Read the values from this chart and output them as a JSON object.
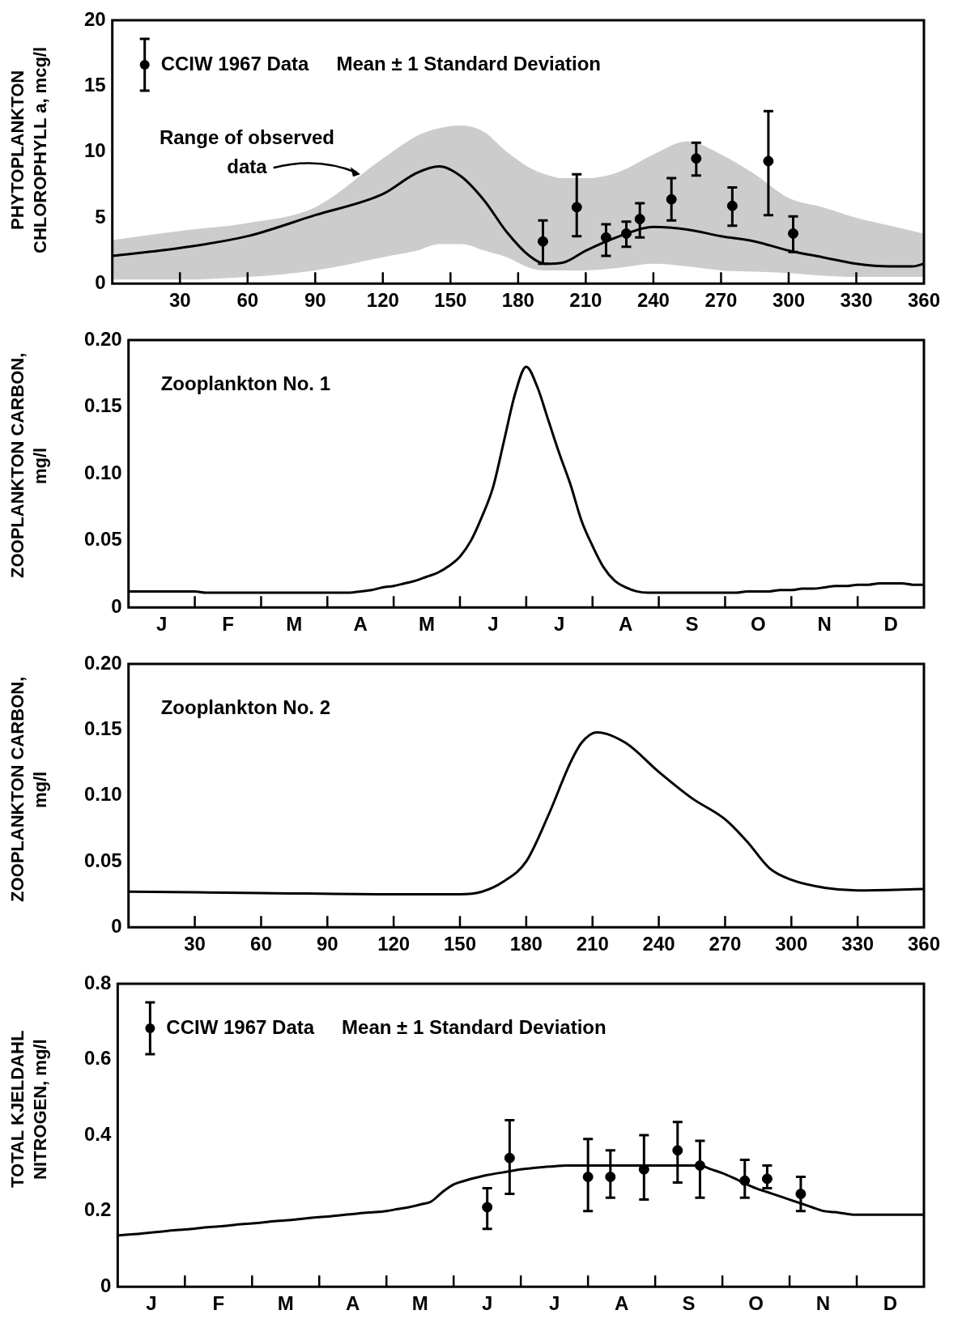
{
  "chart_data": [
    {
      "type": "line",
      "ylabel": "PHYTOPLANKTON CHLOROPHYLL a, mcg/l",
      "xlim": [
        0,
        360
      ],
      "ylim": [
        0,
        20
      ],
      "xticks": [
        30,
        60,
        90,
        120,
        150,
        180,
        210,
        240,
        270,
        300,
        330,
        360
      ],
      "yticks": [
        0,
        5,
        10,
        15,
        20
      ],
      "legend": "top left",
      "annotations": [
        "Mean ± 1 Standard Deviation",
        {
          "text": "Range of observed data",
          "x": 110,
          "y": 8.3
        }
      ],
      "series": [
        {
          "color": "#000000",
          "x": [
            0,
            30,
            60,
            90,
            120,
            135,
            145,
            155,
            165,
            175,
            185,
            192,
            200,
            210,
            225,
            240,
            255,
            270,
            285,
            300,
            315,
            330,
            345,
            355,
            360
          ],
          "values": [
            2.1,
            2.7,
            3.6,
            5.2,
            6.8,
            8.4,
            8.9,
            8.1,
            6.3,
            3.9,
            2.1,
            1.5,
            1.6,
            2.5,
            3.6,
            4.3,
            4.1,
            3.6,
            3.2,
            2.5,
            2.0,
            1.5,
            1.3,
            1.3,
            1.5
          ],
          "lower": [
            0.3,
            0.3,
            0.5,
            1.0,
            2.0,
            2.5,
            3.0,
            3.0,
            2.5,
            2.0,
            1.2,
            1.0,
            1.0,
            1.0,
            1.2,
            1.5,
            1.3,
            1.0,
            0.9,
            0.8,
            0.6,
            0.5,
            0.5,
            0.5,
            0.5
          ],
          "upper": [
            3.3,
            4.0,
            4.6,
            5.8,
            9.5,
            11.2,
            11.8,
            12.0,
            11.5,
            10.0,
            8.8,
            8.3,
            8.0,
            8.0,
            8.5,
            9.8,
            10.8,
            9.8,
            8.3,
            6.5,
            5.8,
            5.0,
            4.4,
            4.0,
            3.8
          ]
        },
        {
          "type": "scatter",
          "name": "CCIW 1967 Data",
          "color": "#000000",
          "marker": "circle",
          "x": [
            191,
            206,
            219,
            228,
            234,
            248,
            259,
            275,
            291,
            302
          ],
          "values": [
            3.2,
            5.8,
            3.5,
            3.8,
            4.9,
            6.4,
            9.5,
            5.9,
            9.3,
            3.8
          ],
          "errors": [
            [
              1.5,
              4.8
            ],
            [
              3.6,
              8.3
            ],
            [
              2.1,
              4.5
            ],
            [
              2.8,
              4.7
            ],
            [
              3.5,
              6.1
            ],
            [
              4.8,
              8.0
            ],
            [
              8.2,
              10.7
            ],
            [
              4.4,
              7.3
            ],
            [
              5.2,
              13.1
            ],
            [
              2.4,
              5.1
            ]
          ]
        }
      ]
    },
    {
      "type": "line",
      "ylabel": "ZOOPLANKTON CARBON, mg/l",
      "ylim": [
        0,
        0.2
      ],
      "categories": [
        null,
        null,
        null,
        "J",
        null,
        null,
        null,
        null,
        null,
        "F",
        null,
        null,
        null,
        null,
        null,
        "M",
        null,
        null,
        null,
        null,
        null,
        "A",
        null,
        null,
        null,
        null,
        null,
        "M",
        null,
        null,
        null,
        null,
        null,
        "J",
        null,
        null,
        null,
        null,
        null,
        "J",
        null,
        null,
        null,
        null,
        null,
        "A",
        null,
        null,
        null,
        null,
        null,
        "S",
        null,
        null,
        null,
        null,
        null,
        "O",
        null,
        null,
        null,
        null,
        null,
        "N",
        null,
        null,
        null,
        null,
        null,
        "D",
        null,
        null,
        null
      ],
      "yticks": [
        0,
        {
          "value": 0.05,
          "label": "0.05"
        },
        {
          "value": 0.1,
          "label": "0.10"
        },
        {
          "value": 0.15,
          "label": "0.15"
        },
        {
          "value": 0.2,
          "label": "0.20"
        }
      ],
      "legend": "top left",
      "series": [
        {
          "name": "Zooplankton No. 1",
          "color": "#000000",
          "values": [
            0.012,
            0.012,
            0.012,
            0.012,
            0.012,
            0.012,
            0.012,
            0.011,
            0.011,
            0.011,
            0.011,
            0.011,
            0.011,
            0.011,
            0.011,
            0.011,
            0.011,
            0.011,
            0.011,
            0.011,
            0.011,
            0.012,
            0.013,
            0.015,
            0.016,
            0.018,
            0.02,
            0.023,
            0.026,
            0.031,
            0.038,
            0.05,
            0.068,
            0.09,
            0.125,
            0.16,
            0.18,
            0.165,
            0.14,
            0.115,
            0.092,
            0.065,
            0.046,
            0.03,
            0.02,
            0.015,
            0.012,
            0.011,
            0.011,
            0.011,
            0.011,
            0.011,
            0.011,
            0.011,
            0.011,
            0.011,
            0.012,
            0.012,
            0.012,
            0.013,
            0.013,
            0.014,
            0.014,
            0.015,
            0.016,
            0.016,
            0.017,
            0.017,
            0.018,
            0.018,
            0.018,
            0.017,
            0.017
          ]
        }
      ]
    },
    {
      "type": "line",
      "ylabel": "ZOOPLANKTON CARBON, mg/l",
      "xlim": [
        0,
        360
      ],
      "ylim": [
        0,
        0.2
      ],
      "xticks": [
        30,
        60,
        90,
        120,
        150,
        180,
        210,
        240,
        270,
        300,
        330,
        360
      ],
      "yticks": [
        0,
        {
          "value": 0.05,
          "label": "0.05"
        },
        {
          "value": 0.1,
          "label": "0.10"
        },
        {
          "value": 0.15,
          "label": "0.15"
        },
        {
          "value": 0.2,
          "label": "0.20"
        }
      ],
      "legend": "top left",
      "series": [
        {
          "name": "Zooplankton No. 2",
          "color": "#000000",
          "x": [
            0,
            60,
            120,
            150,
            160,
            170,
            180,
            190,
            200,
            205,
            212,
            225,
            240,
            255,
            270,
            280,
            290,
            300,
            315,
            330,
            360
          ],
          "values": [
            0.027,
            0.026,
            0.025,
            0.025,
            0.027,
            0.035,
            0.05,
            0.085,
            0.125,
            0.14,
            0.148,
            0.14,
            0.118,
            0.098,
            0.082,
            0.065,
            0.045,
            0.036,
            0.03,
            0.028,
            0.029
          ]
        }
      ]
    },
    {
      "type": "line",
      "ylabel": "TOTAL KJELDAHL NITROGEN, mg/l",
      "ylim": [
        0,
        0.8
      ],
      "categories": [
        null,
        null,
        null,
        "J",
        null,
        null,
        null,
        null,
        null,
        "F",
        null,
        null,
        null,
        null,
        null,
        "M",
        null,
        null,
        null,
        null,
        null,
        "A",
        null,
        null,
        null,
        null,
        null,
        "M",
        null,
        null,
        null,
        null,
        null,
        "J",
        null,
        null,
        null,
        null,
        null,
        "J",
        null,
        null,
        null,
        null,
        null,
        "A",
        null,
        null,
        null,
        null,
        null,
        "S",
        null,
        null,
        null,
        null,
        null,
        "O",
        null,
        null,
        null,
        null,
        null,
        "N",
        null,
        null,
        null,
        null,
        null,
        "D",
        null,
        null,
        null
      ],
      "yticks": [
        0,
        0.2,
        0.4,
        0.6,
        0.8
      ],
      "legend": "top left",
      "annotations": [
        "Mean ± 1 Standard Deviation"
      ],
      "series": [
        {
          "color": "#000000",
          "values": [
            0.135,
            0.138,
            0.14,
            0.143,
            0.146,
            0.149,
            0.151,
            0.154,
            0.157,
            0.159,
            0.162,
            0.165,
            0.167,
            0.17,
            0.173,
            0.175,
            0.178,
            0.181,
            0.184,
            0.186,
            0.189,
            0.192,
            0.195,
            0.197,
            0.2,
            0.205,
            0.21,
            0.217,
            0.225,
            0.25,
            0.27,
            0.28,
            0.288,
            0.295,
            0.3,
            0.305,
            0.31,
            0.313,
            0.316,
            0.318,
            0.32,
            0.32,
            0.32,
            0.32,
            0.32,
            0.32,
            0.32,
            0.32,
            0.32,
            0.32,
            0.32,
            0.32,
            0.32,
            0.31,
            0.3,
            0.287,
            0.273,
            0.26,
            0.25,
            0.24,
            0.23,
            0.22,
            0.21,
            0.2,
            0.197,
            0.193,
            0.19,
            0.19,
            0.19,
            0.19,
            0.19,
            0.19,
            0.19
          ]
        },
        {
          "type": "scatter",
          "name": "CCIW 1967 Data",
          "color": "#000000",
          "marker": "circle",
          "values": [
            null,
            null,
            null,
            null,
            null,
            null,
            null,
            null,
            null,
            null,
            null,
            null,
            null,
            null,
            null,
            null,
            null,
            null,
            null,
            null,
            null,
            null,
            null,
            null,
            null,
            null,
            null,
            null,
            null,
            null,
            null,
            null,
            null,
            0.21,
            null,
            0.34,
            null,
            null,
            null,
            null,
            null,
            null,
            0.29,
            null,
            0.29,
            null,
            null,
            0.31,
            null,
            null,
            0.36,
            null,
            0.32,
            null,
            null,
            null,
            0.28,
            null,
            0.285,
            null,
            null,
            0.245,
            null,
            null,
            null,
            null,
            null,
            null,
            null,
            null,
            null,
            null,
            null
          ],
          "errors": [
            null,
            null,
            null,
            null,
            null,
            null,
            null,
            null,
            null,
            null,
            null,
            null,
            null,
            null,
            null,
            null,
            null,
            null,
            null,
            null,
            null,
            null,
            null,
            null,
            null,
            null,
            null,
            null,
            null,
            null,
            null,
            null,
            null,
            [
              0.153,
              0.26
            ],
            null,
            [
              0.245,
              0.44
            ],
            null,
            null,
            null,
            null,
            null,
            null,
            [
              0.2,
              0.39
            ],
            null,
            [
              0.235,
              0.36
            ],
            null,
            null,
            [
              0.23,
              0.4
            ],
            null,
            null,
            [
              0.275,
              0.435
            ],
            null,
            [
              0.235,
              0.385
            ],
            null,
            null,
            null,
            [
              0.235,
              0.335
            ],
            null,
            [
              0.26,
              0.32
            ],
            null,
            null,
            [
              0.2,
              0.29
            ],
            null,
            null,
            null,
            null,
            null,
            null,
            null,
            null,
            null,
            null,
            null
          ]
        }
      ]
    }
  ]
}
